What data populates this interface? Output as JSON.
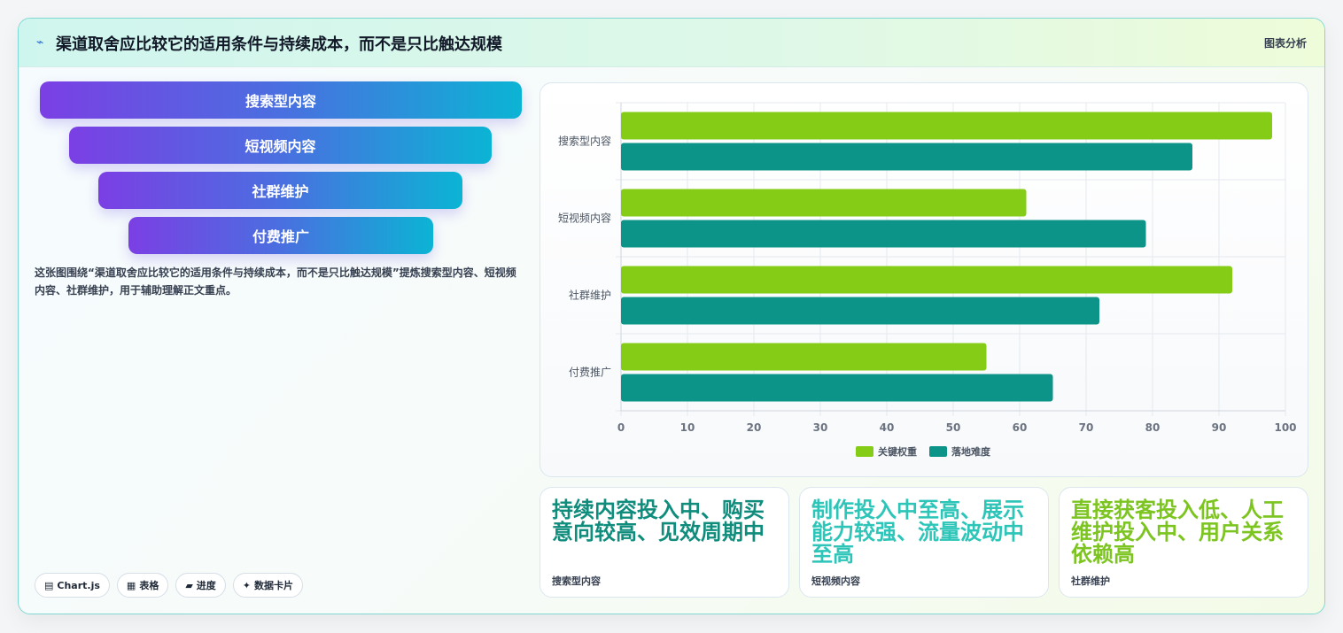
{
  "header": {
    "title": "渠道取舍应比较它的适用条件与持续成本，而不是只比触达规模",
    "tag": "图表分析",
    "accent": "#2b6fd6"
  },
  "funnel": {
    "items": [
      {
        "label": "搜索型内容"
      },
      {
        "label": "短视频内容"
      },
      {
        "label": "社群维护"
      },
      {
        "label": "付费推广"
      }
    ]
  },
  "description": "这张图围绕“渠道取舍应比较它的适用条件与持续成本，而不是只比触达规模”提炼搜索型内容、短视频内容、社群维护，用于辅助理解正文重点。",
  "chips": [
    {
      "icon": "chart-icon",
      "glyph": "▤",
      "label": "Chart.js"
    },
    {
      "icon": "table-icon",
      "glyph": "▦",
      "label": "表格"
    },
    {
      "icon": "progress-icon",
      "glyph": "▰",
      "label": "进度"
    },
    {
      "icon": "data-card-icon",
      "glyph": "✦",
      "label": "数据卡片"
    }
  ],
  "chart_data": {
    "type": "bar",
    "orientation": "horizontal",
    "categories": [
      "搜索型内容",
      "短视频内容",
      "社群维护",
      "付费推广"
    ],
    "series": [
      {
        "name": "关键权重",
        "color": "#84cc16",
        "values": [
          98,
          61,
          92,
          55
        ]
      },
      {
        "name": "落地难度",
        "color": "#0d9488",
        "values": [
          86,
          79,
          72,
          65
        ]
      }
    ],
    "xlim": [
      0,
      100
    ],
    "xticks": [
      "0",
      "10",
      "20",
      "30",
      "40",
      "50",
      "60",
      "70",
      "80",
      "90",
      "100"
    ],
    "grid": true,
    "legend": "bottom"
  },
  "stat_cards": [
    {
      "value": "持续内容投入中、购买意向较高、见效周期中",
      "label": "搜索型内容",
      "color": "#0f8c7c"
    },
    {
      "value": "制作投入中至高、展示能力较强、流量波动中至高",
      "label": "短视频内容",
      "color": "#2dc5b8"
    },
    {
      "value": "直接获客投入低、人工维护投入中、用户关系依赖高",
      "label": "社群维护",
      "color": "#7cc41f"
    }
  ]
}
